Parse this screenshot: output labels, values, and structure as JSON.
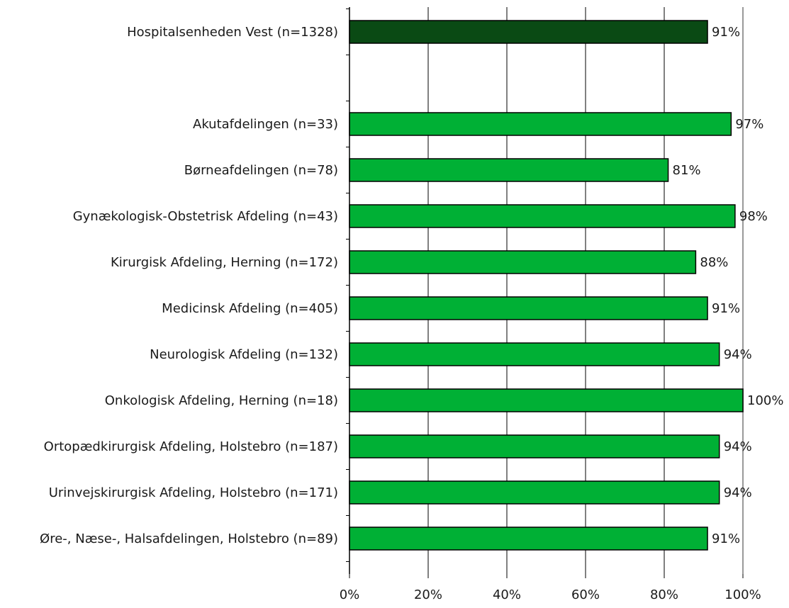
{
  "chart_data": {
    "type": "bar",
    "orientation": "horizontal",
    "categories": [
      "Hospitalsenheden Vest (n=1328)",
      "",
      "Akutafdelingen (n=33)",
      "Børneafdelingen (n=78)",
      "Gynækologisk-Obstetrisk Afdeling (n=43)",
      "Kirurgisk Afdeling, Herning (n=172)",
      "Medicinsk Afdeling (n=405)",
      "Neurologisk Afdeling (n=132)",
      "Onkologisk Afdeling, Herning (n=18)",
      "Ortopædkirurgisk Afdeling, Holstebro (n=187)",
      "Urinvejskirurgisk Afdeling, Holstebro (n=171)",
      "Øre-, Næse-, Halsafdelingen, Holstebro (n=89)"
    ],
    "values": [
      91,
      null,
      97,
      81,
      98,
      88,
      91,
      94,
      100,
      94,
      94,
      91
    ],
    "value_labels": [
      "91%",
      "",
      "97%",
      "81%",
      "98%",
      "88%",
      "91%",
      "94%",
      "100%",
      "94%",
      "94%",
      "91%"
    ],
    "xlim": [
      0,
      100
    ],
    "x_ticks": [
      0,
      20,
      40,
      60,
      80,
      100
    ],
    "x_tick_labels": [
      "0%",
      "20%",
      "40%",
      "60%",
      "80%",
      "100%"
    ],
    "grid": "vertical",
    "legend": "none",
    "colors": {
      "total_bar": "#0a4a14",
      "dept_bar": "#00b035",
      "bar_outline": "#000000",
      "gridline": "#000000",
      "right_border": "#999999"
    }
  }
}
